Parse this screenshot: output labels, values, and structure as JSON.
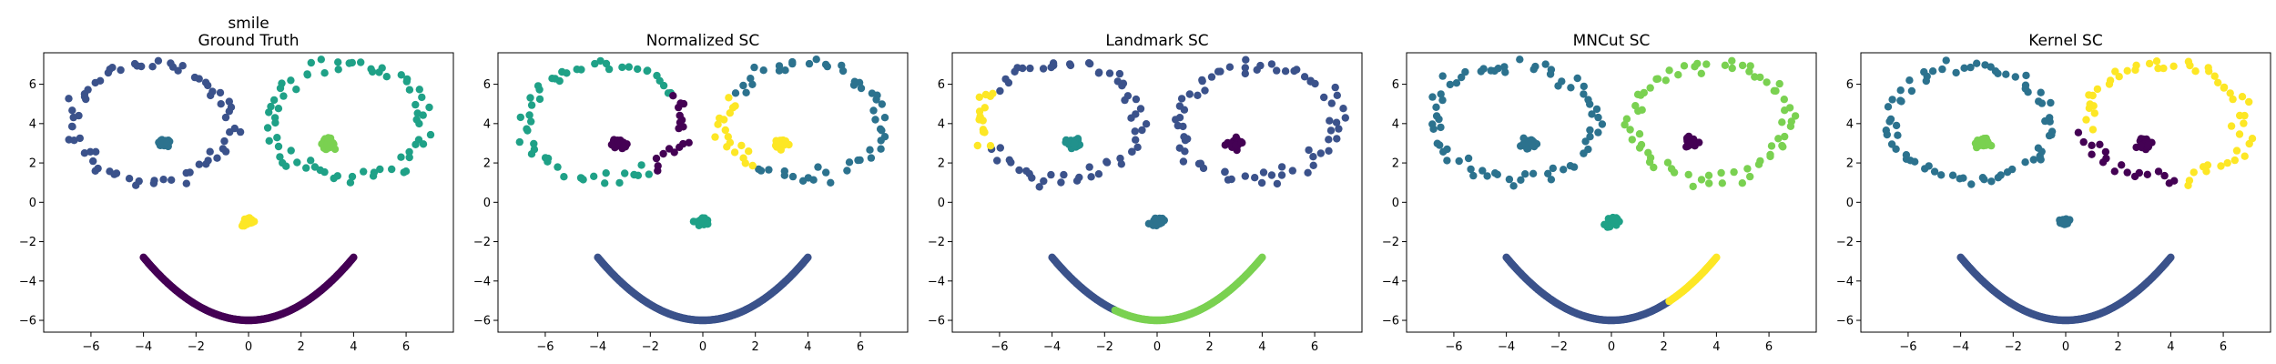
{
  "figure": {
    "dataset": "smile",
    "panel_titles": [
      "Ground Truth",
      "Normalized SC",
      "Landmark SC",
      "MNCut SC",
      "Kernel SC"
    ]
  },
  "palette": {
    "purple": "#440154",
    "indigo": "#3b528b",
    "teal": "#21918c",
    "green": "#5ec962",
    "yellow": "#fde725",
    "green_sea": "#1fa187",
    "blue_teal": "#2c728e",
    "lime": "#7ad151"
  },
  "chart_data": [
    {
      "type": "scatter",
      "title": "smile\nGround Truth",
      "xlim": [
        -7.8,
        7.8
      ],
      "ylim": [
        -6.6,
        7.6
      ],
      "xticks": [
        -6,
        -4,
        -2,
        0,
        2,
        4,
        6
      ],
      "yticks": [
        -6,
        -4,
        -2,
        0,
        2,
        4,
        6
      ],
      "groups": [
        {
          "color": "#3b528b",
          "shape": "left_ring"
        },
        {
          "color": "#2c728e",
          "shape": "left_eye_blob"
        },
        {
          "color": "#1fa187",
          "shape": "right_ring"
        },
        {
          "color": "#7ad151",
          "shape": "right_eye_blob"
        },
        {
          "color": "#fde725",
          "shape": "nose"
        },
        {
          "color": "#440154",
          "shape": "mouth"
        }
      ]
    },
    {
      "type": "scatter",
      "title": "Normalized SC",
      "xlim": [
        -7.8,
        7.8
      ],
      "ylim": [
        -6.6,
        7.6
      ],
      "xticks": [
        -6,
        -4,
        -2,
        0,
        2,
        4,
        6
      ],
      "yticks": [
        -6,
        -4,
        -2,
        0,
        2,
        4,
        6
      ],
      "groups": [
        {
          "color": "#1fa187",
          "shape": "left_ring_outer_arc"
        },
        {
          "color": "#440154",
          "shape": "left_ring_inner_low_arc"
        },
        {
          "color": "#440154",
          "shape": "left_eye_blob"
        },
        {
          "color": "#2c728e",
          "shape": "right_ring_outer_arc"
        },
        {
          "color": "#fde725",
          "shape": "right_ring_inner_low_arc"
        },
        {
          "color": "#fde725",
          "shape": "right_eye_blob"
        },
        {
          "color": "#1fa187",
          "shape": "nose"
        },
        {
          "color": "#3b528b",
          "shape": "mouth"
        }
      ]
    },
    {
      "type": "scatter",
      "title": "Landmark SC",
      "xlim": [
        -7.8,
        7.8
      ],
      "ylim": [
        -6.6,
        7.6
      ],
      "xticks": [
        -6,
        -4,
        -2,
        0,
        2,
        4,
        6
      ],
      "yticks": [
        -6,
        -4,
        -2,
        0,
        2,
        4,
        6
      ],
      "groups": [
        {
          "color": "#3b528b",
          "shape": "left_ring_main"
        },
        {
          "color": "#fde725",
          "shape": "left_ring_far_left_arc"
        },
        {
          "color": "#21918c",
          "shape": "left_eye_blob"
        },
        {
          "color": "#3b528b",
          "shape": "right_ring"
        },
        {
          "color": "#440154",
          "shape": "right_eye_blob"
        },
        {
          "color": "#2c728e",
          "shape": "nose"
        },
        {
          "color": "#3b528b",
          "shape": "mouth_left_part",
          "x_range": [
            -4.0,
            -1.6
          ]
        },
        {
          "color": "#7ad151",
          "shape": "mouth_right_part",
          "x_range": [
            -1.6,
            4.0
          ]
        }
      ]
    },
    {
      "type": "scatter",
      "title": "MNCut SC",
      "xlim": [
        -7.8,
        7.8
      ],
      "ylim": [
        -6.6,
        7.6
      ],
      "xticks": [
        -6,
        -4,
        -2,
        0,
        2,
        4,
        6
      ],
      "yticks": [
        -6,
        -4,
        -2,
        0,
        2,
        4,
        6
      ],
      "groups": [
        {
          "color": "#2c728e",
          "shape": "left_ring"
        },
        {
          "color": "#2c728e",
          "shape": "left_eye_blob"
        },
        {
          "color": "#7ad151",
          "shape": "right_ring"
        },
        {
          "color": "#440154",
          "shape": "right_eye_blob"
        },
        {
          "color": "#1fa187",
          "shape": "nose"
        },
        {
          "color": "#3b528b",
          "shape": "mouth_left_part",
          "x_range": [
            -4.0,
            2.2
          ]
        },
        {
          "color": "#fde725",
          "shape": "mouth_right_part",
          "x_range": [
            2.2,
            4.0
          ]
        }
      ]
    },
    {
      "type": "scatter",
      "title": "Kernel SC",
      "xlim": [
        -7.8,
        7.8
      ],
      "ylim": [
        -6.6,
        7.6
      ],
      "xticks": [
        -6,
        -4,
        -2,
        0,
        2,
        4,
        6
      ],
      "yticks": [
        -6,
        -4,
        -2,
        0,
        2,
        4,
        6
      ],
      "groups": [
        {
          "color": "#2c728e",
          "shape": "left_ring"
        },
        {
          "color": "#7ad151",
          "shape": "left_eye_blob"
        },
        {
          "color": "#fde725",
          "shape": "right_ring_upper_arc"
        },
        {
          "color": "#440154",
          "shape": "right_ring_lower_left_arc"
        },
        {
          "color": "#440154",
          "shape": "right_eye_blob"
        },
        {
          "color": "#2c728e",
          "shape": "nose"
        },
        {
          "color": "#3b528b",
          "shape": "mouth"
        }
      ]
    }
  ]
}
